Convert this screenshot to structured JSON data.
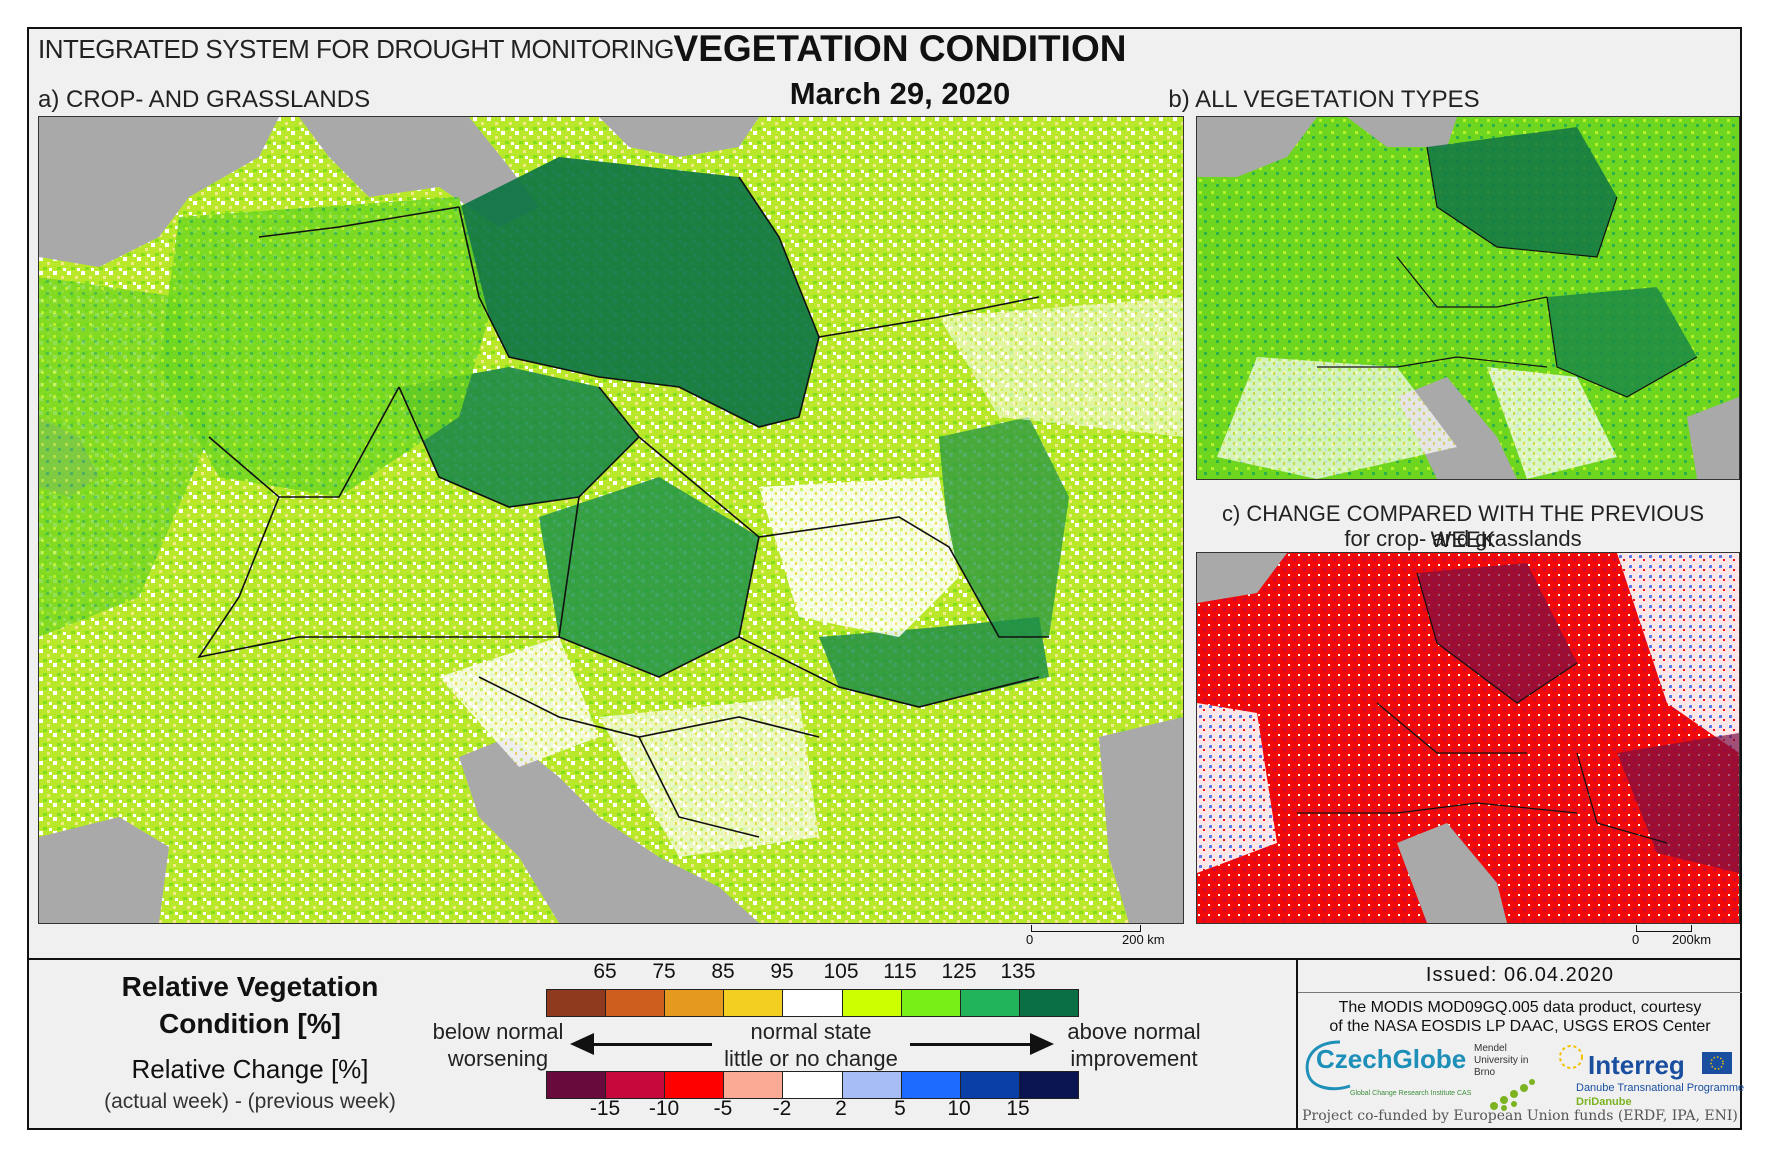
{
  "header": {
    "system_title": "INTEGRATED SYSTEM FOR DROUGHT MONITORING",
    "main_title": "VEGETATION CONDITION",
    "date": "March 29, 2020"
  },
  "panels": {
    "a_label": "a) CROP- AND GRASSLANDS",
    "b_label": "b) ALL VEGETATION TYPES",
    "c_label": "c) CHANGE COMPARED WITH THE PREVIOUS WEEK",
    "c_sublabel": "for crop- and grasslands"
  },
  "scalebars": {
    "a_zero": "0",
    "a_max": "200 km",
    "c_zero": "0",
    "c_max": "200km"
  },
  "legend": {
    "title": "Relative Vegetation Condition [%]",
    "rel_change": "Relative Change [%]",
    "formula": "(actual week) - (previous week)",
    "condition_ticks": [
      "65",
      "75",
      "85",
      "95",
      "105",
      "115",
      "125",
      "135"
    ],
    "condition_colors": [
      "#8f3a1f",
      "#cd5e1d",
      "#e59a1f",
      "#f3cf21",
      "#ffffff",
      "#ccff00",
      "#78ef17",
      "#22b45b",
      "#0b6f44"
    ],
    "change_ticks": [
      "-15",
      "-10",
      "-5",
      "-2",
      "2",
      "5",
      "10",
      "15"
    ],
    "change_colors": [
      "#680a3c",
      "#c6083c",
      "#ff0000",
      "#fbab95",
      "#ffffff",
      "#a7bdf5",
      "#1d6bff",
      "#0a3fa8",
      "#0a1450"
    ],
    "below_normal": "below normal",
    "worsening": "worsening",
    "normal_state": "normal state",
    "little_change": "little or no change",
    "above_normal": "above normal",
    "improvement": "improvement"
  },
  "footer": {
    "issued": "Issued: 06.04.2020",
    "credit_line1": "The MODIS MOD09GQ.005 data product, courtesy",
    "credit_line2": "of the NASA EOSDIS LP DAAC, USGS EROS Center",
    "logo_czechglobe": "CzechGlobe",
    "logo_czechglobe_sub": "Global Change Research Institute CAS",
    "logo_mendel": "Mendel University in Brno",
    "logo_interreg": "Interreg",
    "logo_interreg_sub": "Danube Transnational Programme",
    "logo_dridanube": "DriDanube",
    "cofunded": "Project co-funded by European Union funds (ERDF, IPA, ENI)"
  }
}
